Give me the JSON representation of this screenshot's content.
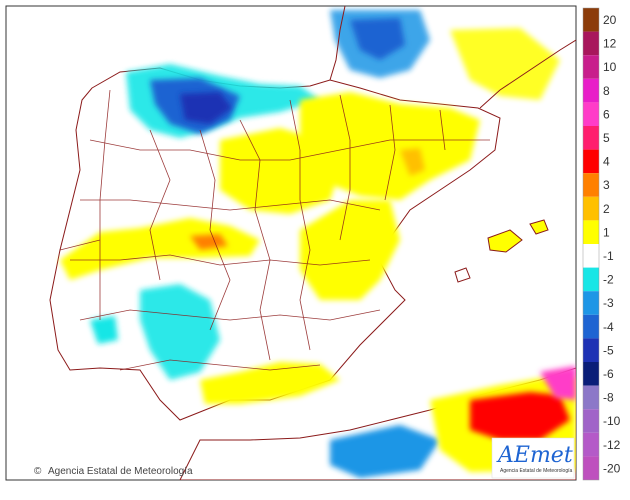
{
  "credit": {
    "symbol": "©",
    "text": "Agencia Estatal de Meteorología"
  },
  "logo": {
    "wordmark": "AEmet",
    "subtitle": "Agencia Estatal de Meteorología"
  },
  "legend": {
    "categories": [
      {
        "label": "20",
        "color": "#8c3c0a"
      },
      {
        "label": "12",
        "color": "#a8175c"
      },
      {
        "label": "10",
        "color": "#c81e8c"
      },
      {
        "label": "8",
        "color": "#e81ec8"
      },
      {
        "label": "6",
        "color": "#ff3cc8"
      },
      {
        "label": "5",
        "color": "#ff1e6e"
      },
      {
        "label": "4",
        "color": "#ff0000"
      },
      {
        "label": "3",
        "color": "#ff8000"
      },
      {
        "label": "2",
        "color": "#ffc000"
      },
      {
        "label": "1",
        "color": "#ffff00"
      },
      {
        "label": "-1",
        "color": "#ffffff"
      },
      {
        "label": "-2",
        "color": "#19e6e6"
      },
      {
        "label": "-3",
        "color": "#1e96e6"
      },
      {
        "label": "-4",
        "color": "#1e64d2"
      },
      {
        "label": "-5",
        "color": "#1e32b4"
      },
      {
        "label": "-6",
        "color": "#0a1e78"
      },
      {
        "label": "-8",
        "color": "#8c78c8"
      },
      {
        "label": "-10",
        "color": "#a064c8"
      },
      {
        "label": "-12",
        "color": "#b45ac8"
      },
      {
        "label": "-20",
        "color": "#be50be"
      }
    ]
  },
  "colors": {
    "sea": "#ffffff",
    "land": "#ffffff",
    "border": "#8b1a1a",
    "frame": "#333333"
  }
}
